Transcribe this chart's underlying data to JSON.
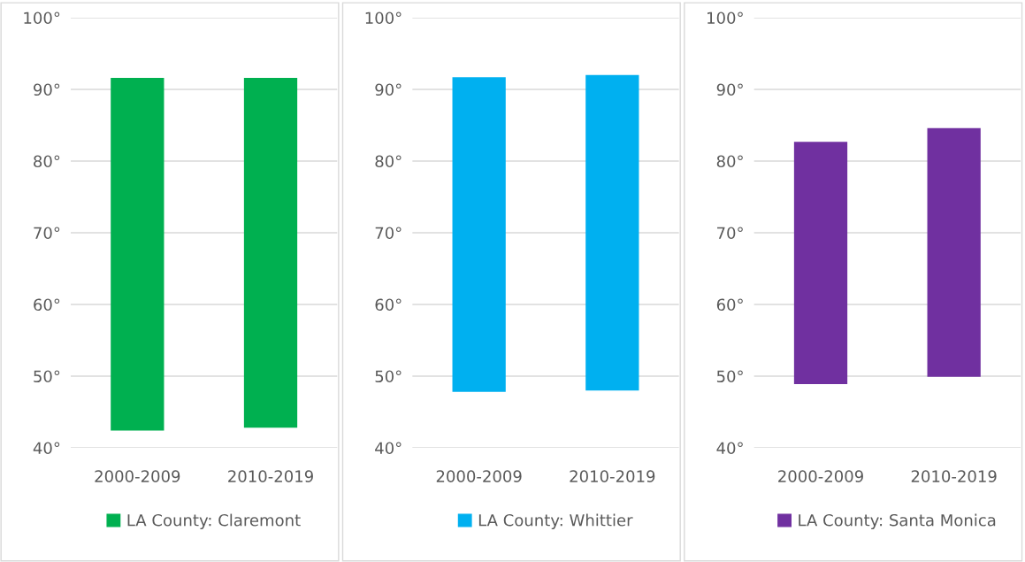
{
  "chart_data": [
    {
      "type": "bar",
      "categories": [
        "2000-2009",
        "2010-2019"
      ],
      "series": [
        {
          "name": "LA County: Claremont",
          "color": "#00b050",
          "base": [
            42.4,
            42.8
          ],
          "values": [
            49.2,
            48.8
          ]
        }
      ],
      "ylim": [
        40,
        100
      ],
      "yticks": [
        {
          "value": 40,
          "label": "40°"
        },
        {
          "value": 50,
          "label": "50°"
        },
        {
          "value": 60,
          "label": "60°"
        },
        {
          "value": 70,
          "label": "70°"
        },
        {
          "value": 80,
          "label": "80°"
        },
        {
          "value": 90,
          "label": "90°"
        },
        {
          "value": 100,
          "label": "100°"
        }
      ],
      "grid": "y",
      "legend": "bottom"
    },
    {
      "type": "bar",
      "categories": [
        "2000-2009",
        "2010-2019"
      ],
      "series": [
        {
          "name": "LA County: Whittier",
          "color": "#00b0f0",
          "base": [
            47.8,
            48.0
          ],
          "values": [
            43.9,
            44.0
          ]
        }
      ],
      "ylim": [
        40,
        100
      ],
      "yticks": [
        {
          "value": 40,
          "label": "40°"
        },
        {
          "value": 50,
          "label": "50°"
        },
        {
          "value": 60,
          "label": "60°"
        },
        {
          "value": 70,
          "label": "70°"
        },
        {
          "value": 80,
          "label": "80°"
        },
        {
          "value": 90,
          "label": "90°"
        },
        {
          "value": 100,
          "label": "100°"
        }
      ],
      "grid": "y",
      "legend": "bottom"
    },
    {
      "type": "bar",
      "categories": [
        "2000-2009",
        "2010-2019"
      ],
      "series": [
        {
          "name": "LA County: Santa Monica",
          "color": "#7030a0",
          "base": [
            48.9,
            49.9
          ],
          "values": [
            33.8,
            34.7
          ]
        }
      ],
      "ylim": [
        40,
        100
      ],
      "yticks": [
        {
          "value": 40,
          "label": "40°"
        },
        {
          "value": 50,
          "label": "50°"
        },
        {
          "value": 60,
          "label": "60°"
        },
        {
          "value": 70,
          "label": "70°"
        },
        {
          "value": 80,
          "label": "80°"
        },
        {
          "value": 90,
          "label": "90°"
        },
        {
          "value": 100,
          "label": "100°"
        }
      ],
      "grid": "y",
      "legend": "bottom"
    }
  ]
}
